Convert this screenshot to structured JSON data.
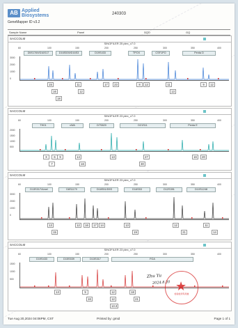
{
  "header": {
    "logo_mark": "AB",
    "logo_line1": "Applied",
    "logo_line2": "Biosystems",
    "sample_id": "240303",
    "software": "GeneMapper ID v3.2"
  },
  "column_headers": {
    "sample_name": "Sample Name",
    "panel": "Panel",
    "sqo": "SQO",
    "gq": "GQ"
  },
  "panels": [
    {
      "name": "SACCOLM",
      "kit": "SINOFILER 25 plex_v7.0",
      "scale": [
        "60",
        "100",
        "150",
        "200",
        "250",
        "300",
        "350",
        "400"
      ],
      "yticks": [
        "3000",
        "2000",
        "1000",
        "0"
      ],
      "markers": [
        "D5S1769/D16S17",
        "D16S539/D16S3",
        "D19S433",
        "TPOX",
        "CSF1PO",
        "Penta D"
      ],
      "alleles": [
        "15",
        "16",
        "18",
        "11",
        "12",
        "17",
        "23",
        "8",
        "12",
        "11",
        "13",
        "9",
        "12"
      ],
      "color": "#3a7bd5"
    },
    {
      "name": "SACCOLM",
      "kit": "SINOFILER 23 plex_v7.0",
      "scale": [
        "60",
        "100",
        "150",
        "200",
        "250",
        "300",
        "350",
        "400"
      ],
      "yticks": [
        "2000",
        "1500",
        "1000",
        "500"
      ],
      "markers": [
        "TH01",
        "vWA",
        "D7S820",
        "D21S11",
        "Penta E"
      ],
      "alleles": [
        "X",
        "6",
        "9",
        "7",
        "14",
        "16",
        "13",
        "27",
        "30",
        "16",
        "20"
      ],
      "color": "#1aa6a6"
    },
    {
      "name": "SACCOLM",
      "kit": "SINOFILER 23 plex_v7.0",
      "scale": [
        "60",
        "100",
        "150",
        "200",
        "250",
        "300",
        "350",
        "400"
      ],
      "yticks": [
        "3000",
        "2000",
        "1000",
        "0"
      ],
      "markers": [
        "D13S317/Amel",
        "D8S1179",
        "D18S51/D5S",
        "D16S53",
        "D12S391",
        "D10S1248"
      ],
      "alleles": [
        "13",
        "15",
        "12",
        "16",
        "17",
        "14",
        "13",
        "19",
        "12",
        "21",
        "11",
        "14"
      ],
      "color": "#333333"
    },
    {
      "name": "SACCOLM",
      "kit": "SINOFILER 23 plex_v7.0",
      "scale": [
        "60",
        "100",
        "150",
        "200",
        "250",
        "300",
        "350",
        "400"
      ],
      "yticks": [
        "1500",
        "1000",
        "500"
      ],
      "markers": [
        "D19S433",
        "D15S539",
        "D13S317",
        "FGA"
      ],
      "alleles": [
        "13",
        "9",
        "16",
        "12",
        "12",
        "13.3",
        "18",
        "21"
      ],
      "color": "#d43030"
    }
  ],
  "stamp": {
    "ring_text": "检验检测专用章"
  },
  "signature": {
    "line1": "Zhu Yu",
    "line2": "2024.8.20"
  },
  "footer": {
    "printed_at": "Tue Aug 20,2024 04:06PM, CST",
    "printed_by": "Printed by: gmid",
    "page": "Page 1 of 1"
  }
}
